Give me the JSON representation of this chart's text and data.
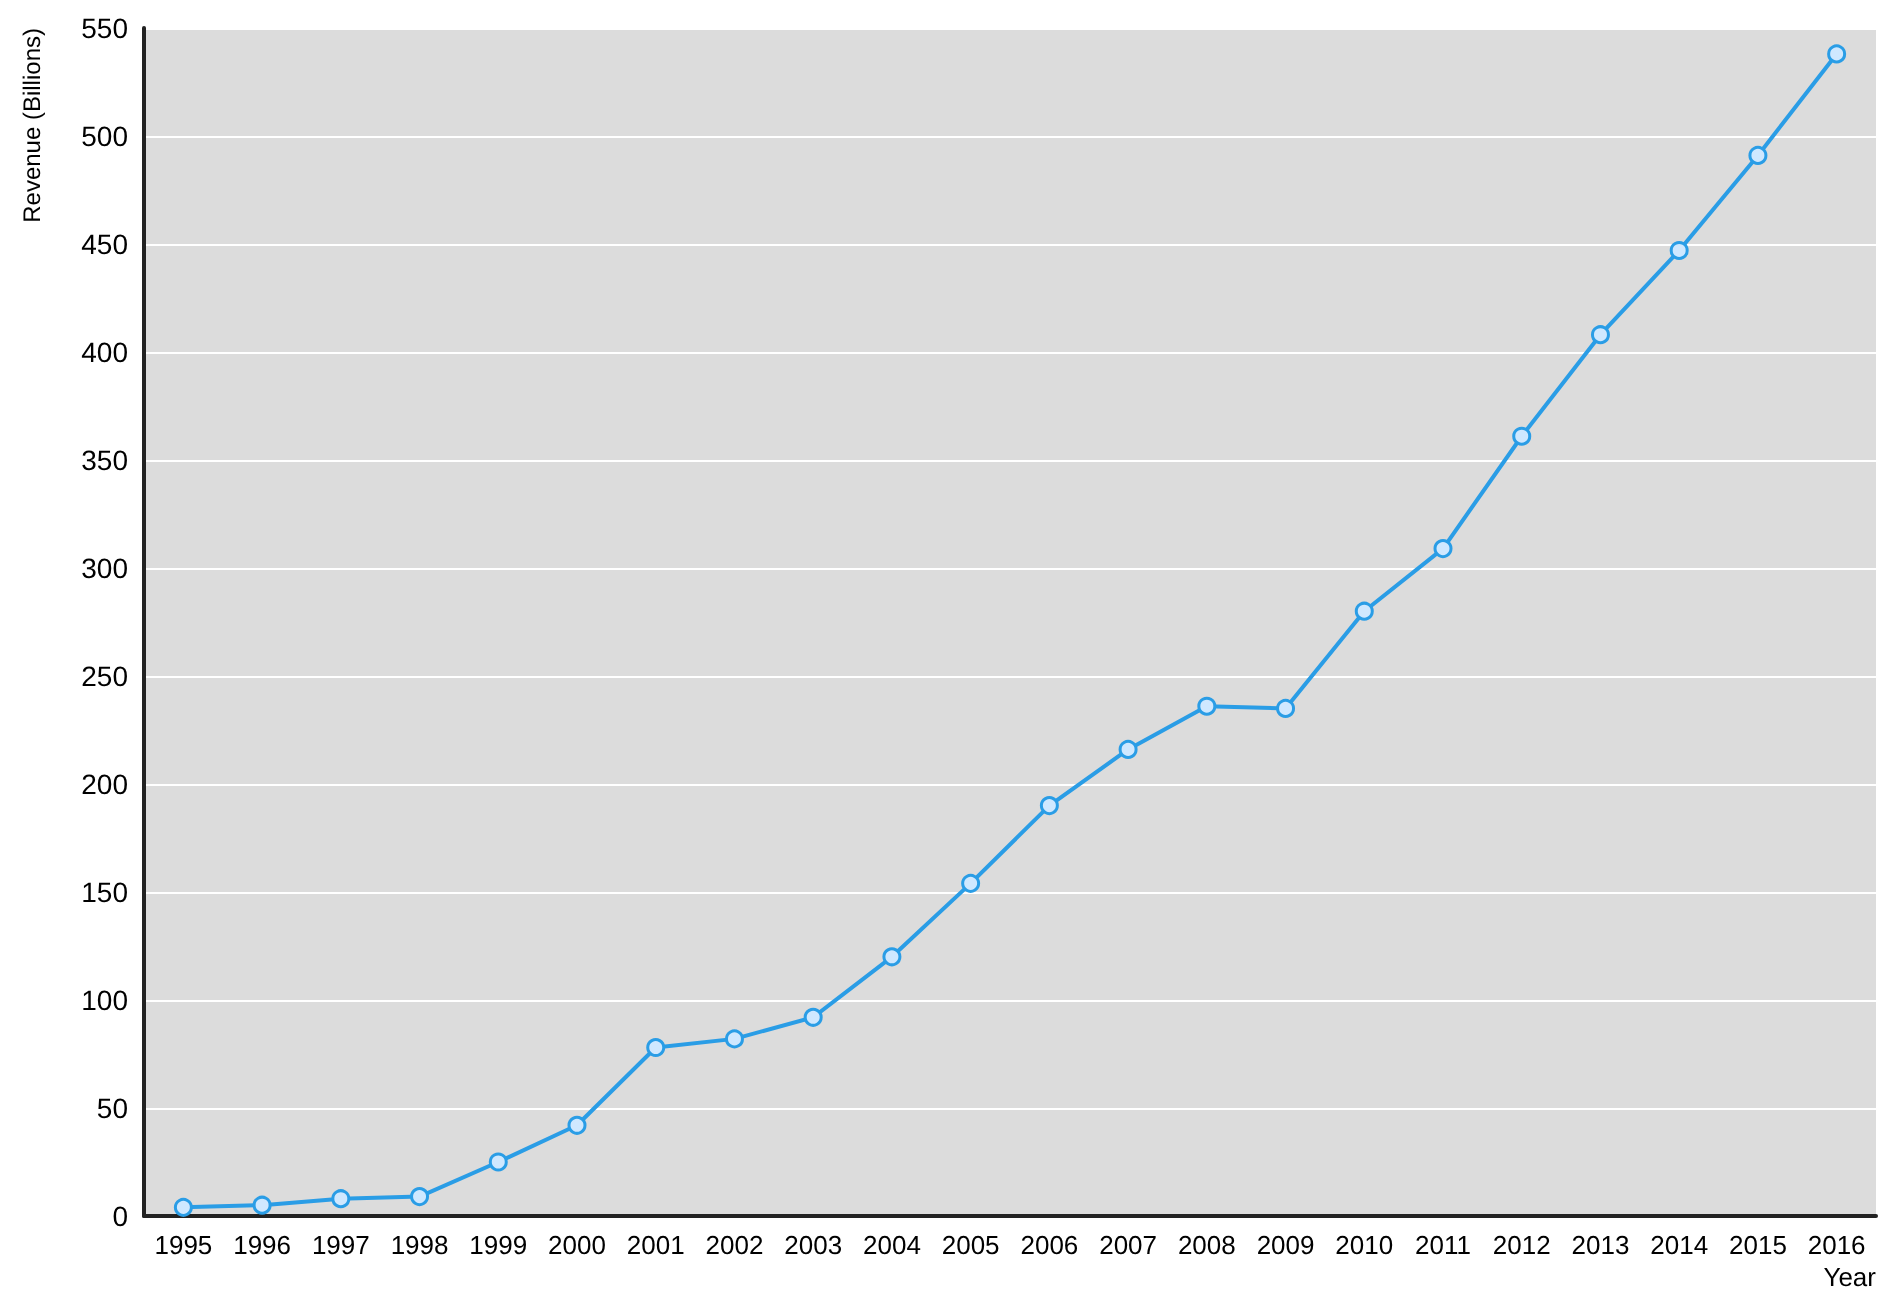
{
  "chart_data": {
    "type": "line",
    "xlabel": "Year",
    "ylabel": "Revenue (Billions)",
    "categories": [
      "1995",
      "1996",
      "1997",
      "1998",
      "1999",
      "2000",
      "2001",
      "2002",
      "2003",
      "2004",
      "2005",
      "2006",
      "2007",
      "2008",
      "2009",
      "2010",
      "2011",
      "2012",
      "2013",
      "2014",
      "2015",
      "2016"
    ],
    "series": [
      {
        "color": "#2a9de6",
        "values": [
          4,
          5,
          8,
          9,
          25,
          42,
          78,
          82,
          92,
          120,
          154,
          190,
          216,
          236,
          235,
          280,
          309,
          361,
          408,
          447,
          491,
          538
        ]
      }
    ],
    "ylim": [
      0,
      550
    ],
    "yticks": [
      0,
      50,
      100,
      150,
      200,
      250,
      300,
      350,
      400,
      450,
      500,
      550
    ],
    "grid": "y",
    "marker": "circle",
    "line_style": "solid"
  }
}
